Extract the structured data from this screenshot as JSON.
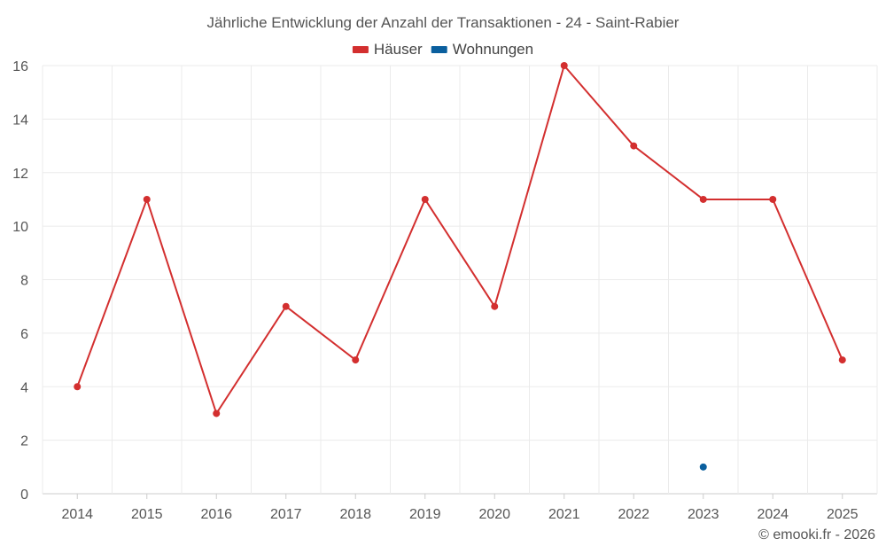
{
  "chart_data": {
    "type": "line",
    "title": "Jährliche Entwicklung der Anzahl der Transaktionen - 24 - Saint-Rabier",
    "xlabel": "",
    "ylabel": "",
    "categories": [
      "2014",
      "2015",
      "2016",
      "2017",
      "2018",
      "2019",
      "2020",
      "2021",
      "2022",
      "2023",
      "2024",
      "2025"
    ],
    "ylim": [
      0,
      16
    ],
    "yticks": [
      0,
      2,
      4,
      6,
      8,
      10,
      12,
      14,
      16
    ],
    "grid": true,
    "legend_position": "top-center",
    "series": [
      {
        "name": "Häuser",
        "color": "#d32f2f",
        "values": [
          4,
          11,
          3,
          7,
          5,
          11,
          7,
          16,
          13,
          11,
          11,
          5
        ]
      },
      {
        "name": "Wohnungen",
        "color": "#0a5f9e",
        "values": [
          null,
          null,
          null,
          null,
          null,
          null,
          null,
          null,
          null,
          1,
          null,
          null
        ]
      }
    ]
  },
  "credit": "© emooki.fr - 2026"
}
